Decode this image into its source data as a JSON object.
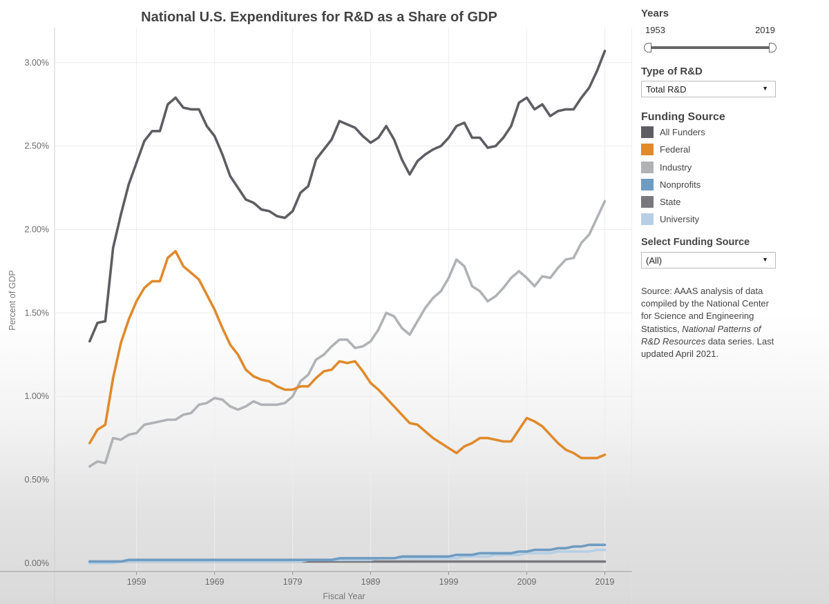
{
  "chart_data": {
    "type": "line",
    "title": "National U.S. Expenditures for R&D as a Share of GDP",
    "xlabel": "Fiscal Year",
    "ylabel": "Percent of GDP",
    "xlim": [
      1948.5,
      2022.5
    ],
    "ylim": [
      -0.0005,
      0.0321
    ],
    "x_ticks": [
      1959,
      1969,
      1979,
      1989,
      1999,
      2009,
      2019
    ],
    "y_ticks": [
      0,
      0.005,
      0.01,
      0.015,
      0.02,
      0.025,
      0.03
    ],
    "y_tick_labels": [
      "0.00%",
      "0.50%",
      "1.00%",
      "1.50%",
      "2.00%",
      "2.50%",
      "3.00%"
    ],
    "x_start": 1953,
    "series": [
      {
        "name": "All Funders",
        "color": "#5d5d63",
        "values": [
          0.0133,
          0.0144,
          0.0145,
          0.0189,
          0.0209,
          0.0227,
          0.024,
          0.0253,
          0.0259,
          0.0259,
          0.0275,
          0.0279,
          0.0273,
          0.0272,
          0.0272,
          0.0262,
          0.0256,
          0.0245,
          0.0232,
          0.0225,
          0.0218,
          0.0216,
          0.0212,
          0.0211,
          0.0208,
          0.0207,
          0.0211,
          0.0222,
          0.0226,
          0.0242,
          0.0248,
          0.0254,
          0.0265,
          0.0263,
          0.0261,
          0.0256,
          0.0252,
          0.0255,
          0.0262,
          0.0254,
          0.0242,
          0.0233,
          0.0241,
          0.0245,
          0.0248,
          0.025,
          0.0255,
          0.0262,
          0.0264,
          0.0255,
          0.0255,
          0.0249,
          0.025,
          0.0255,
          0.0262,
          0.0276,
          0.0279,
          0.0272,
          0.0275,
          0.0268,
          0.0271,
          0.0272,
          0.0272,
          0.0279,
          0.0285,
          0.0295,
          0.0307
        ]
      },
      {
        "name": "Federal",
        "color": "#e08a2c",
        "values": [
          0.0072,
          0.008,
          0.0083,
          0.0111,
          0.0132,
          0.0146,
          0.0157,
          0.0165,
          0.0169,
          0.0169,
          0.0183,
          0.0187,
          0.0178,
          0.0174,
          0.017,
          0.0161,
          0.0152,
          0.0141,
          0.0131,
          0.0125,
          0.0116,
          0.0112,
          0.011,
          0.0109,
          0.0106,
          0.0104,
          0.0104,
          0.0106,
          0.0106,
          0.0111,
          0.0115,
          0.0116,
          0.0121,
          0.012,
          0.0121,
          0.0115,
          0.0108,
          0.0104,
          0.0099,
          0.0094,
          0.0089,
          0.0084,
          0.0083,
          0.0079,
          0.0075,
          0.0072,
          0.0069,
          0.0066,
          0.007,
          0.0072,
          0.0075,
          0.0075,
          0.0074,
          0.0073,
          0.0073,
          0.008,
          0.0087,
          0.0085,
          0.0082,
          0.0077,
          0.0072,
          0.0068,
          0.0066,
          0.0063,
          0.0063,
          0.0063,
          0.0065
        ]
      },
      {
        "name": "Industry",
        "color": "#b0b2b6",
        "values": [
          0.0058,
          0.0061,
          0.006,
          0.0075,
          0.0074,
          0.0077,
          0.0078,
          0.0083,
          0.0084,
          0.0085,
          0.0086,
          0.0086,
          0.0089,
          0.009,
          0.0095,
          0.0096,
          0.0099,
          0.0098,
          0.0094,
          0.0092,
          0.0094,
          0.0097,
          0.0095,
          0.0095,
          0.0095,
          0.0096,
          0.01,
          0.0109,
          0.0113,
          0.0122,
          0.0125,
          0.013,
          0.0134,
          0.0134,
          0.0129,
          0.013,
          0.0133,
          0.014,
          0.015,
          0.0148,
          0.0141,
          0.0137,
          0.0145,
          0.0153,
          0.0159,
          0.0163,
          0.0171,
          0.0182,
          0.0178,
          0.0166,
          0.0163,
          0.0157,
          0.016,
          0.0165,
          0.0171,
          0.0175,
          0.0171,
          0.0166,
          0.0172,
          0.0171,
          0.0177,
          0.0182,
          0.0183,
          0.0192,
          0.0197,
          0.0207,
          0.0217
        ]
      },
      {
        "name": "Nonprofits",
        "color": "#6f9cc2",
        "values": [
          0.0001,
          0.0001,
          0.0001,
          0.0001,
          0.0001,
          0.0002,
          0.0002,
          0.0002,
          0.0002,
          0.0002,
          0.0002,
          0.0002,
          0.0002,
          0.0002,
          0.0002,
          0.0002,
          0.0002,
          0.0002,
          0.0002,
          0.0002,
          0.0002,
          0.0002,
          0.0002,
          0.0002,
          0.0002,
          0.0002,
          0.0002,
          0.0002,
          0.0002,
          0.0002,
          0.0002,
          0.0002,
          0.0003,
          0.0003,
          0.0003,
          0.0003,
          0.0003,
          0.0003,
          0.0003,
          0.0003,
          0.0004,
          0.0004,
          0.0004,
          0.0004,
          0.0004,
          0.0004,
          0.0004,
          0.0005,
          0.0005,
          0.0005,
          0.0006,
          0.0006,
          0.0006,
          0.0006,
          0.0006,
          0.0007,
          0.0007,
          0.0008,
          0.0008,
          0.0008,
          0.0009,
          0.0009,
          0.001,
          0.001,
          0.0011,
          0.0011,
          0.0011
        ]
      },
      {
        "name": "State",
        "color": "#78787e",
        "values": [
          0.0001,
          0.0001,
          0.0001,
          0.0001,
          0.0001,
          0.0001,
          0.0001,
          0.0001,
          0.0001,
          0.0001,
          0.0001,
          0.0001,
          0.0001,
          0.0001,
          0.0001,
          0.0001,
          0.0001,
          0.0001,
          0.0001,
          0.0001,
          0.0001,
          0.0001,
          0.0001,
          0.0001,
          0.0001,
          0.0001,
          0.0001,
          0.0001,
          0.0001,
          0.0001,
          0.0001,
          0.0001,
          0.0001,
          0.0001,
          0.0001,
          0.0001,
          0.0001,
          0.0001,
          0.0001,
          0.0001,
          0.0001,
          0.0001,
          0.0001,
          0.0001,
          0.0001,
          0.0001,
          0.0001,
          0.0001,
          0.0001,
          0.0001,
          0.0001,
          0.0001,
          0.0001,
          0.0001,
          0.0001,
          0.0001,
          0.0001,
          0.0001,
          0.0001,
          0.0001,
          0.0001,
          0.0001,
          0.0001,
          0.0001,
          0.0001,
          0.0001,
          0.0001
        ]
      },
      {
        "name": "University",
        "color": "#b6cfe4",
        "values": [
          0.0,
          0.0,
          0.0,
          0.0,
          0.0001,
          0.0001,
          0.0001,
          0.0001,
          0.0001,
          0.0001,
          0.0001,
          0.0001,
          0.0001,
          0.0001,
          0.0001,
          0.0001,
          0.0001,
          0.0001,
          0.0001,
          0.0001,
          0.0001,
          0.0001,
          0.0001,
          0.0001,
          0.0001,
          0.0001,
          0.0001,
          0.0001,
          0.0002,
          0.0002,
          0.0002,
          0.0002,
          0.0002,
          0.0002,
          0.0002,
          0.0002,
          0.0002,
          0.0003,
          0.0003,
          0.0003,
          0.0003,
          0.0003,
          0.0003,
          0.0003,
          0.0003,
          0.0003,
          0.0003,
          0.0003,
          0.0004,
          0.0004,
          0.0004,
          0.0004,
          0.0005,
          0.0005,
          0.0005,
          0.0005,
          0.0006,
          0.0006,
          0.0006,
          0.0006,
          0.0007,
          0.0007,
          0.0007,
          0.0007,
          0.0007,
          0.0008,
          0.0008
        ]
      }
    ]
  },
  "panel": {
    "years": {
      "heading": "Years",
      "start": "1953",
      "end": "2019"
    },
    "type_of_rd": {
      "heading": "Type of R&D",
      "selected": "Total R&D"
    },
    "legend": {
      "heading": "Funding Source"
    },
    "select_funding": {
      "heading": "Select Funding Source",
      "selected": "(All)"
    },
    "source_note": {
      "prefix": "Source: AAAS analysis of data compiled by the National Center for Science and Engineering Statistics, ",
      "italic": "National Patterns of R&D Resources",
      "suffix": " data series. Last updated April 2021."
    }
  }
}
